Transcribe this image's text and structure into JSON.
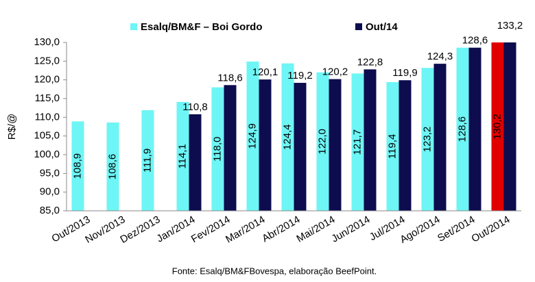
{
  "chart_data": {
    "type": "bar",
    "y_label": "R$/@",
    "source": "Fonte: Esalq/BM&FBovespa, elaboração BeefPoint.",
    "categories": [
      "Out/2013",
      "Nov/2013",
      "Dez/2013",
      "Jan/2014",
      "Fev/2014",
      "Mar/2014",
      "Abr/2014",
      "Mai/2014",
      "Jun/2014",
      "Jul/2014",
      "Ago/2014",
      "Set/2014",
      "Out/2014"
    ],
    "series": [
      {
        "name": "Esalq/BM&F – Boi Gordo",
        "color": "#6ef5f5",
        "colors": [
          "#6ef5f5",
          "#6ef5f5",
          "#6ef5f5",
          "#6ef5f5",
          "#6ef5f5",
          "#6ef5f5",
          "#6ef5f5",
          "#6ef5f5",
          "#6ef5f5",
          "#6ef5f5",
          "#6ef5f5",
          "#6ef5f5",
          "#e00000"
        ],
        "values": [
          108.9,
          108.6,
          111.9,
          114.1,
          118.0,
          124.9,
          124.4,
          122.0,
          121.7,
          119.4,
          123.2,
          128.6,
          130.2
        ],
        "value_labels": [
          "108,9",
          "108,6",
          "111,9",
          "114,1",
          "118,0",
          "124,9",
          "124,4",
          "122,0",
          "121,7",
          "119,4",
          "123,2",
          "128,6",
          "130,2"
        ]
      },
      {
        "name": "Out/14",
        "color": "#0c0c4e",
        "values": [
          null,
          null,
          null,
          110.8,
          118.6,
          120.1,
          119.2,
          120.2,
          122.8,
          119.9,
          124.3,
          128.6,
          133.2
        ],
        "value_labels": [
          null,
          null,
          null,
          "110,8",
          "118,6",
          "120,1",
          "119,2",
          "120,2",
          "122,8",
          "119,9",
          "124,3",
          "128,6",
          "133,2"
        ]
      }
    ],
    "ylim": [
      85,
      130
    ],
    "yticks": [
      {
        "value": 85,
        "label": "85,0"
      },
      {
        "value": 90,
        "label": "90,0"
      },
      {
        "value": 95,
        "label": "95,0"
      },
      {
        "value": 100,
        "label": "100,0"
      },
      {
        "value": 105,
        "label": "105,0"
      },
      {
        "value": 110,
        "label": "110,0"
      },
      {
        "value": 115,
        "label": "115,0"
      },
      {
        "value": 120,
        "label": "120,0"
      },
      {
        "value": 125,
        "label": "125,0"
      },
      {
        "value": 130,
        "label": "130,0"
      }
    ],
    "grid": false
  }
}
